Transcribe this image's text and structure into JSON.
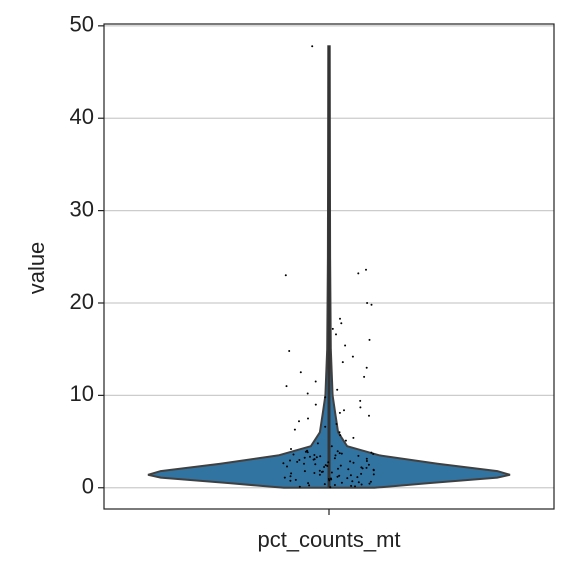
{
  "chart_data": {
    "type": "violin",
    "ylabel": "value",
    "categories": [
      "pct_counts_mt"
    ],
    "color": "#3274a1",
    "ylim": [
      -2.3,
      50.2
    ],
    "yticks": [
      0,
      10,
      20,
      30,
      40,
      50
    ],
    "grid": true,
    "violin": {
      "y": [
        0,
        0.5,
        1.1,
        1.4,
        1.8,
        2.6,
        3.5,
        4.5,
        6,
        8,
        10,
        15,
        25,
        35,
        47.8
      ],
      "density": [
        0.25,
        0.55,
        0.93,
        1.0,
        0.93,
        0.6,
        0.28,
        0.1,
        0.05,
        0.035,
        0.02,
        0.01,
        0.006,
        0.005,
        0.004
      ]
    },
    "points": [
      0.1,
      0.2,
      0.3,
      0.4,
      0.5,
      0.6,
      0.7,
      0.8,
      0.9,
      1.0,
      1.1,
      1.2,
      1.3,
      1.4,
      1.5,
      1.6,
      1.7,
      1.8,
      1.9,
      2.0,
      2.1,
      2.2,
      2.3,
      2.4,
      2.5,
      2.6,
      2.7,
      2.8,
      2.9,
      3.0,
      3.1,
      3.2,
      3.3,
      3.4,
      3.5,
      3.6,
      3.7,
      3.8,
      3.9,
      4.0,
      0.15,
      0.35,
      0.55,
      0.75,
      0.95,
      1.15,
      1.35,
      1.55,
      1.75,
      1.95,
      2.15,
      2.35,
      2.55,
      2.75,
      2.95,
      3.15,
      3.35,
      3.55,
      3.75,
      3.95,
      0.05,
      0.25,
      0.45,
      0.65,
      0.85,
      1.05,
      1.25,
      1.45,
      1.65,
      1.85,
      2.05,
      2.25,
      2.45,
      2.65,
      2.85,
      3.05,
      3.25,
      3.45,
      3.65,
      3.85,
      4.2,
      4.5,
      4.8,
      5.1,
      5.4,
      5.7,
      6.0,
      6.3,
      6.6,
      6.9,
      7.2,
      7.5,
      7.8,
      8.1,
      8.4,
      8.7,
      9.0,
      9.4,
      9.8,
      10.2,
      10.6,
      11.0,
      11.5,
      12.0,
      12.5,
      13.0,
      13.6,
      14.2,
      14.8,
      15.4,
      16.0,
      16.6,
      17.2,
      17.8,
      18.3,
      19.8,
      20.0,
      23.0,
      23.2,
      23.6,
      47.8
    ]
  }
}
